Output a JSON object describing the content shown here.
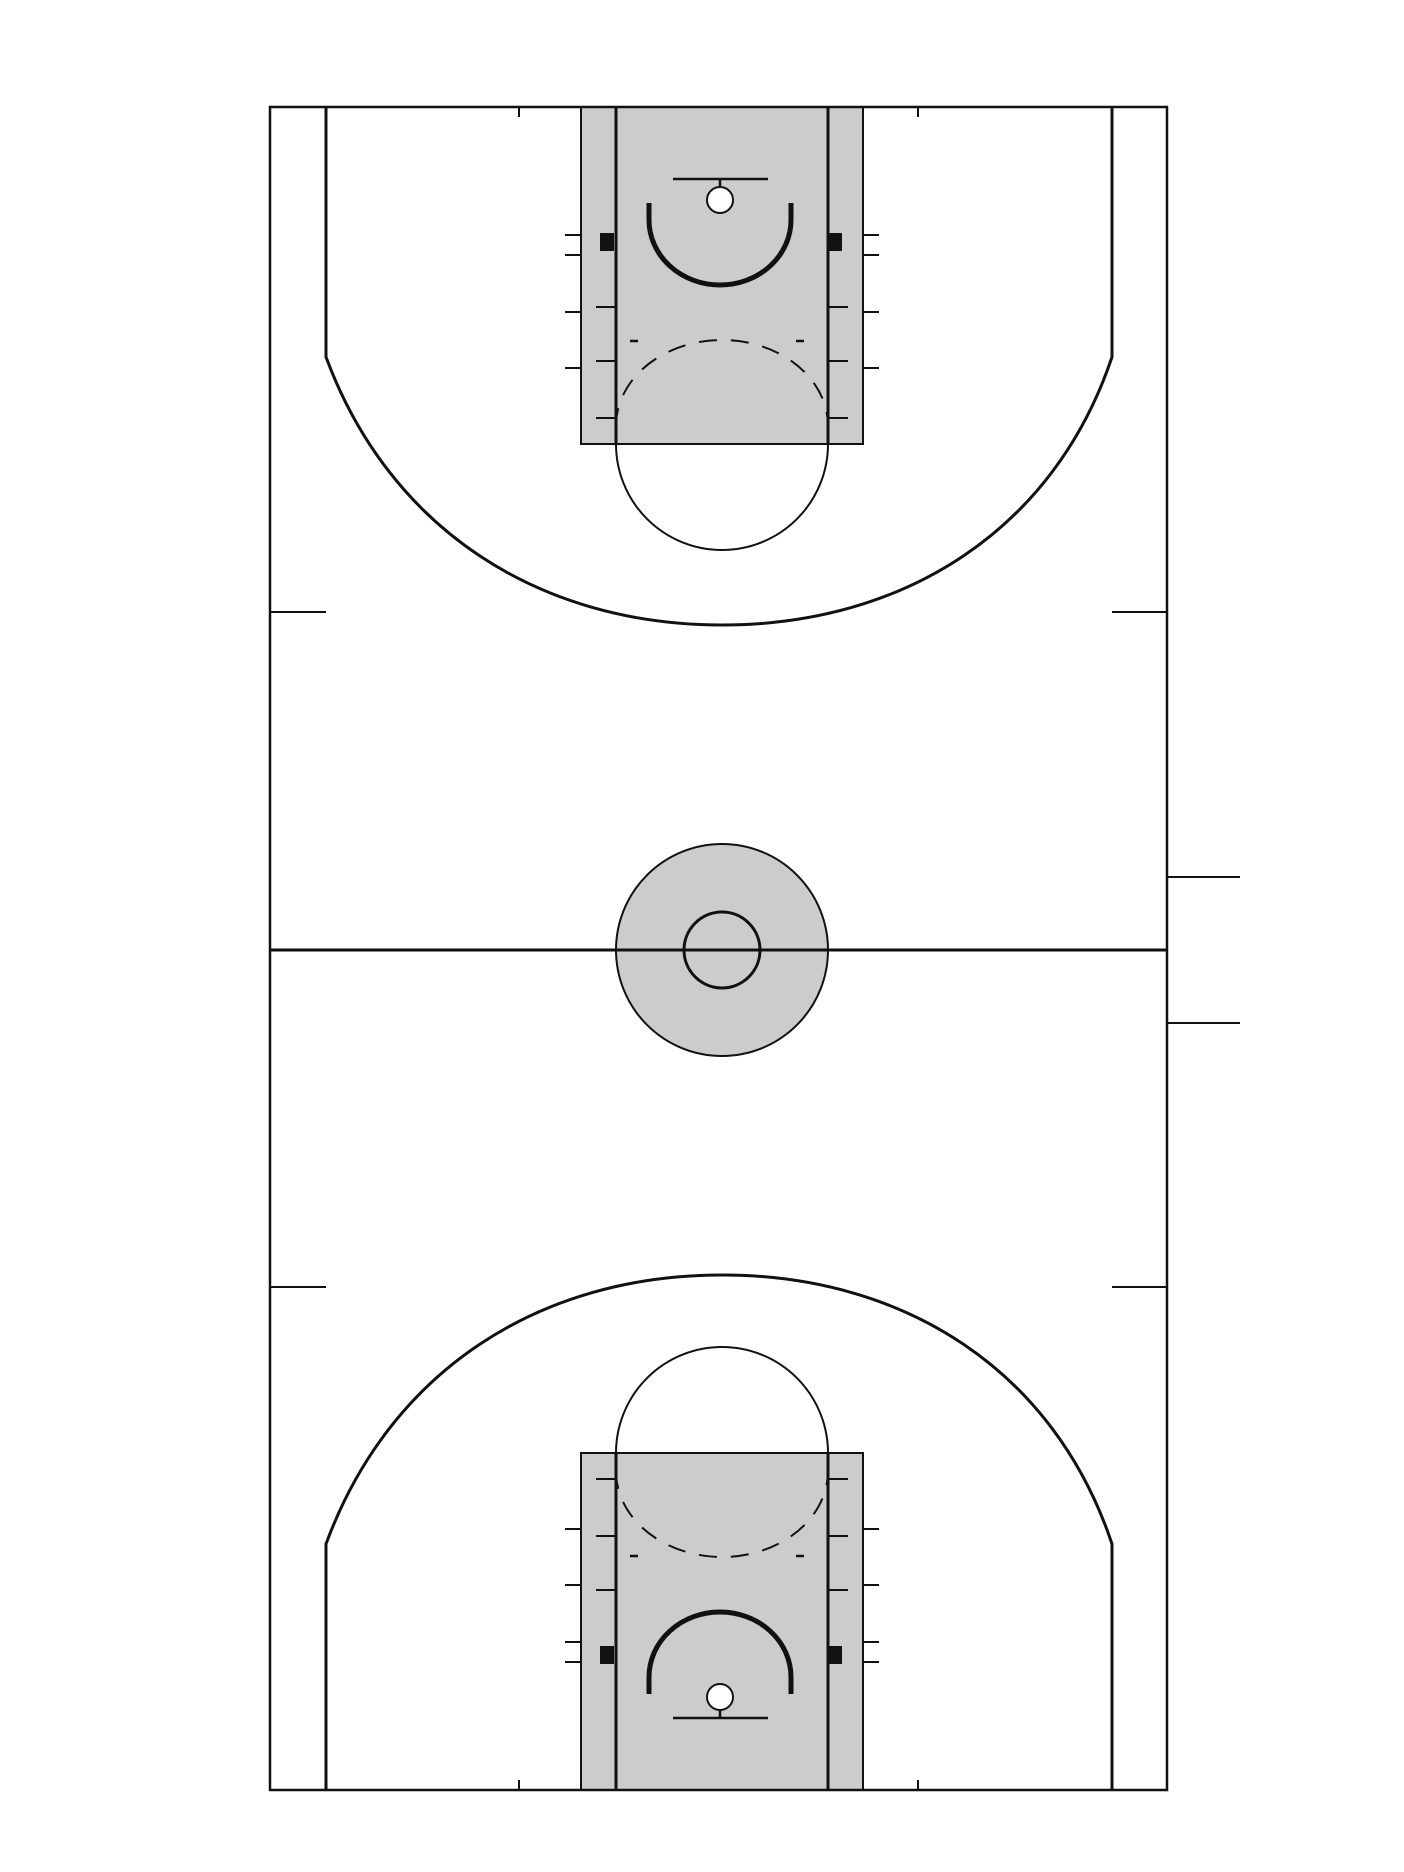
{
  "diagram": {
    "type": "basketball-court",
    "orientation": "vertical",
    "colors": {
      "background": "#ffffff",
      "lines": "#111111",
      "paint_fill": "#cccccc",
      "center_fill": "#cccccc"
    }
  }
}
